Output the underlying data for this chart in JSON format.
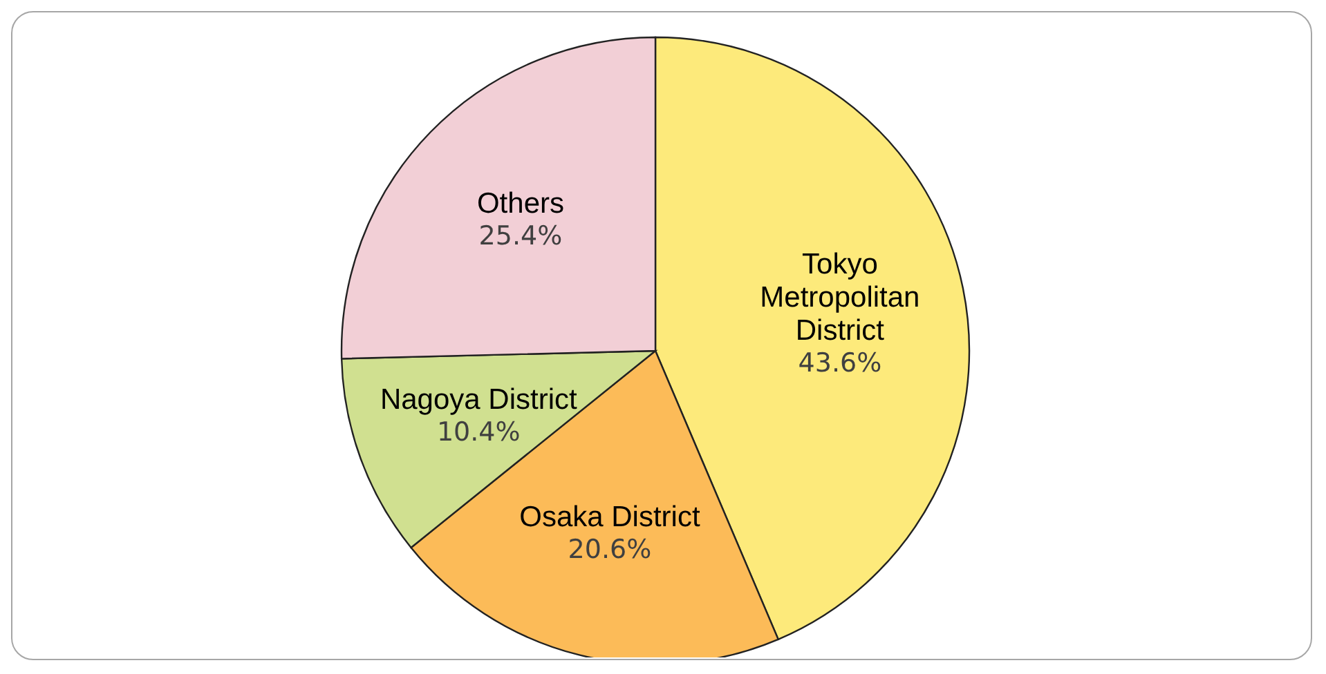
{
  "chart_data": {
    "type": "pie",
    "categories": [
      "Tokyo Metropolitan District",
      "Osaka District",
      "Nagoya District",
      "Others"
    ],
    "values": [
      43.6,
      20.6,
      10.4,
      25.4
    ],
    "colors": [
      "#fdea7b",
      "#fcbb58",
      "#d0e090",
      "#f2cfd6"
    ],
    "value_labels": [
      "43.6%",
      "20.6%",
      "10.4%",
      "25.4%"
    ],
    "legend": false
  }
}
